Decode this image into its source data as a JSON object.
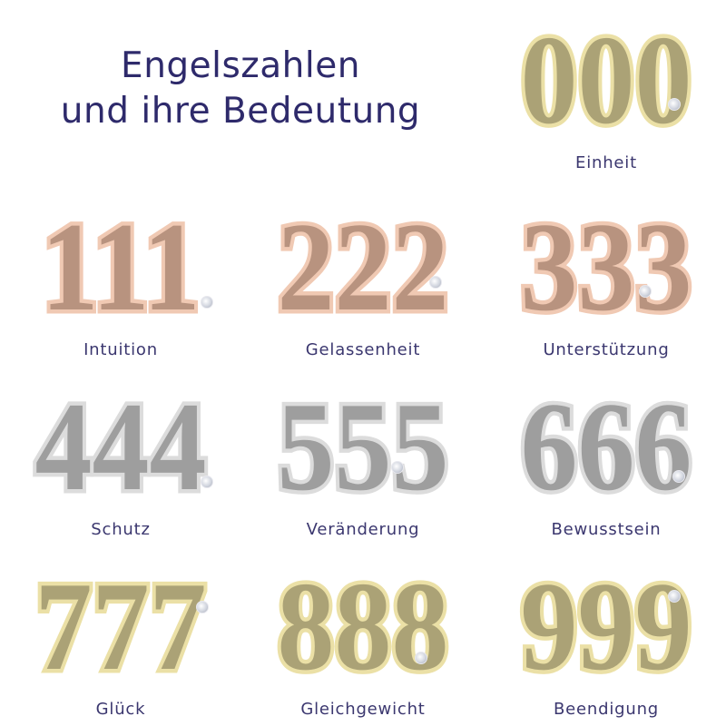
{
  "title": {
    "line1": "Engelszahlen",
    "line2": "und ihre Bedeutung"
  },
  "colors": {
    "text": "#2e2a6b",
    "gold_fill": "#aba276",
    "gold_outline": "#ebe0a6",
    "rose_fill": "#b8937f",
    "rose_outline": "#f0c9b3",
    "silver_fill": "#9e9e9e",
    "silver_outline": "#dcdcdc"
  },
  "numbers": [
    {
      "number": "000",
      "meaning": "Einheit",
      "finish": "gold"
    },
    {
      "number": "111",
      "meaning": "Intuition",
      "finish": "rose"
    },
    {
      "number": "222",
      "meaning": "Gelassenheit",
      "finish": "rose"
    },
    {
      "number": "333",
      "meaning": "Unterstützung",
      "finish": "rose"
    },
    {
      "number": "444",
      "meaning": "Schutz",
      "finish": "silver"
    },
    {
      "number": "555",
      "meaning": "Veränderung",
      "finish": "silver"
    },
    {
      "number": "666",
      "meaning": "Bewusstsein",
      "finish": "silver"
    },
    {
      "number": "777",
      "meaning": "Glück",
      "finish": "gold"
    },
    {
      "number": "888",
      "meaning": "Gleichgewicht",
      "finish": "gold"
    },
    {
      "number": "999",
      "meaning": "Beendigung",
      "finish": "gold"
    }
  ]
}
